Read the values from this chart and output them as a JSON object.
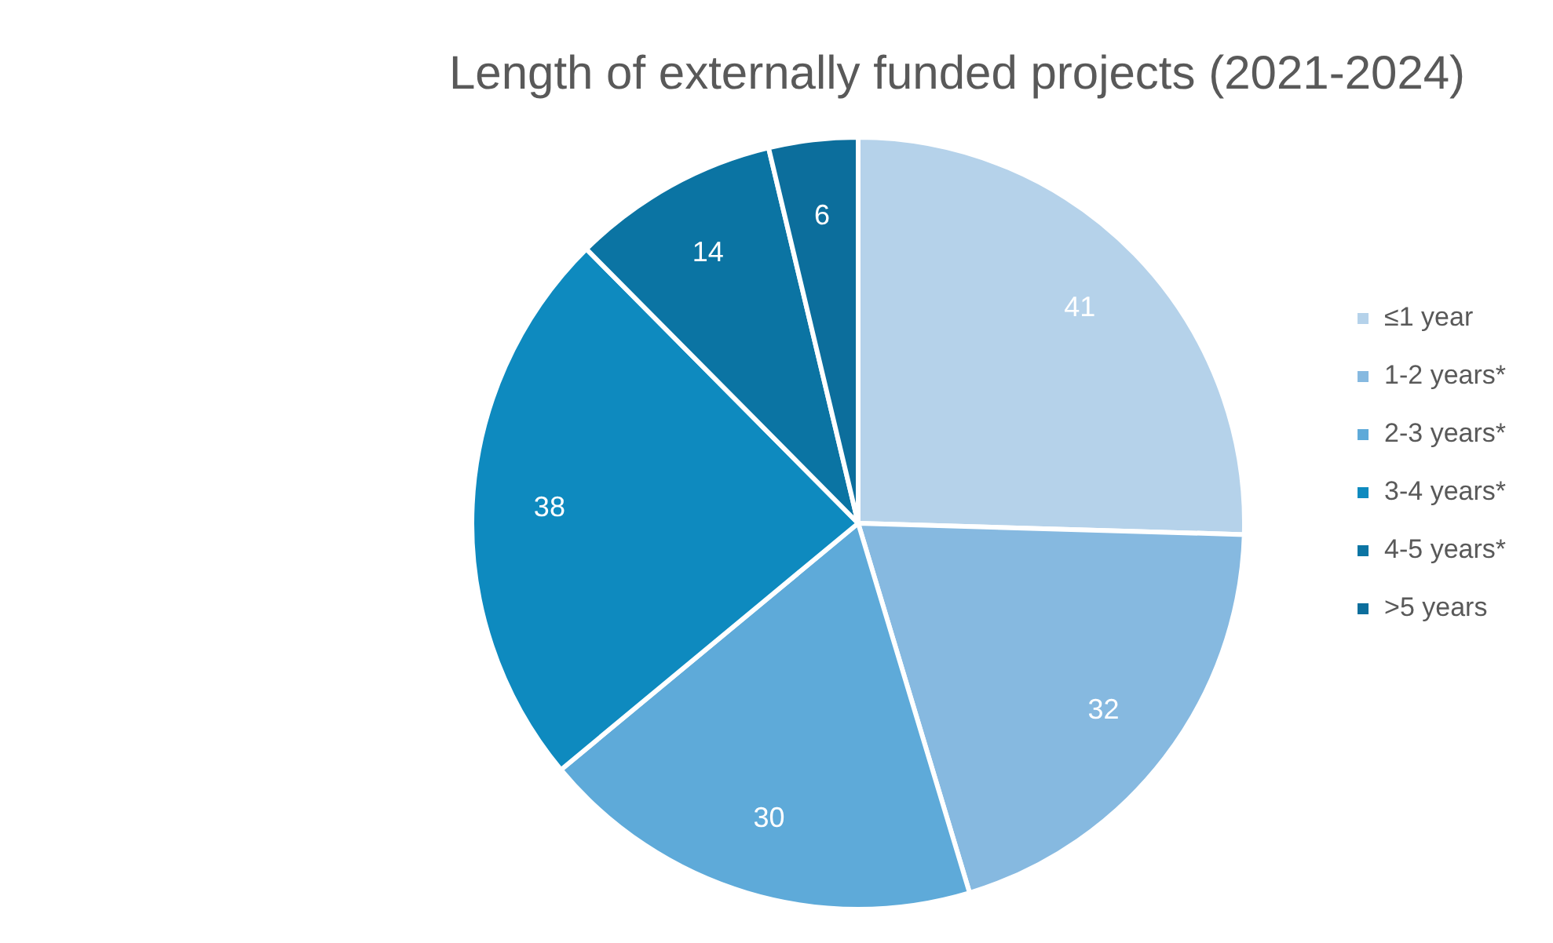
{
  "chart_data": {
    "type": "pie",
    "title": "Length of externally funded projects (2021-2024)",
    "categories": [
      "≤1 year",
      "1-2 years*",
      "2-3 years*",
      "3-4 years*",
      "4-5 years*",
      ">5 years"
    ],
    "values": [
      41,
      32,
      30,
      38,
      14,
      6
    ],
    "colors": [
      "#b5d2ea",
      "#86b9e0",
      "#5eaad9",
      "#0e8abf",
      "#0b74a3",
      "#0c6e9c"
    ],
    "data_labels": true,
    "legend": "right"
  }
}
